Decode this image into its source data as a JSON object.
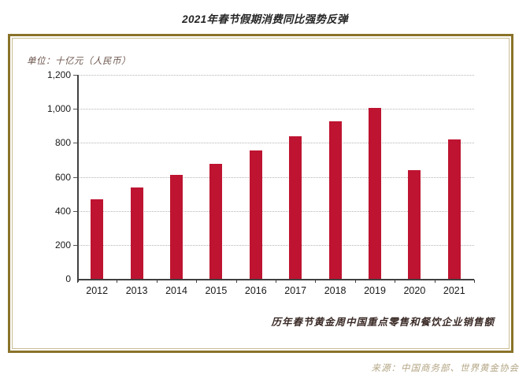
{
  "title": "2021年春节假期消费同比强势反弹",
  "unit_label": "单位：十亿元（人民币）",
  "caption": "历年春节黄金周中国重点零售和餐饮企业销售额",
  "source": "来源：中国商务部、世界黄金协会",
  "colors": {
    "bar": "#BE1431",
    "frame_outer": "#8A7329",
    "frame_inner": "#C9BC92",
    "axis": "#404040",
    "gridline": "#b5b5b5",
    "caption_text": "#3b2b27",
    "unit_text": "#6d564d",
    "source_text": "#b4a685"
  },
  "chart_data": {
    "type": "bar",
    "title": "2021年春节假期消费同比强势反弹",
    "subtitle": "历年春节黄金周中国重点零售和餐饮企业销售额",
    "xlabel": "",
    "ylabel": "单位：十亿元（人民币）",
    "categories": [
      "2012",
      "2013",
      "2014",
      "2015",
      "2016",
      "2017",
      "2018",
      "2019",
      "2020",
      "2021"
    ],
    "values": [
      470,
      539,
      610,
      678,
      754,
      840,
      926,
      1005,
      639,
      821
    ],
    "ylim": [
      0,
      1200
    ],
    "yticks": [
      0,
      200,
      400,
      600,
      800,
      1000,
      1200
    ],
    "ytick_labels": [
      "0",
      "200",
      "400",
      "600",
      "800",
      "1,000",
      "1,200"
    ],
    "grid": "horizontal-dotted",
    "legend": "none",
    "bar_color": "#BE1431"
  }
}
